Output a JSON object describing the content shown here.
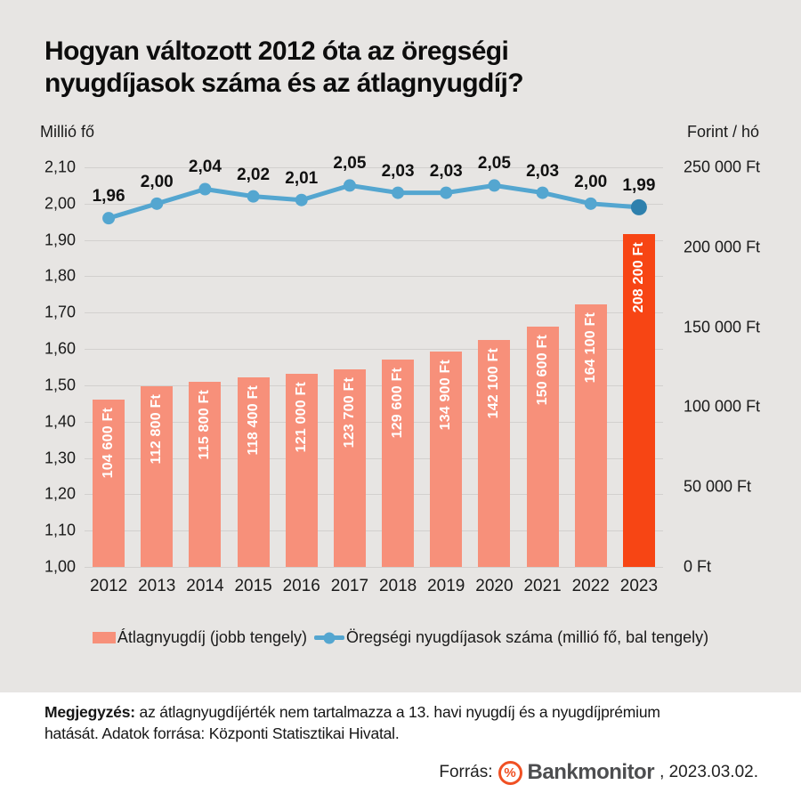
{
  "title": "Hogyan változott 2012 óta az öregségi\nnyugdíjasok száma és az átlagnyugdíj?",
  "chart_data": {
    "type": "combo",
    "title": "Hogyan változott 2012 óta az öregségi nyugdíjasok száma és az átlagnyugdíj?",
    "categories": [
      "2012",
      "2013",
      "2014",
      "2015",
      "2016",
      "2017",
      "2018",
      "2019",
      "2020",
      "2021",
      "2022",
      "2023"
    ],
    "series": [
      {
        "name": "Átlagnyugdíj (jobb tengely)",
        "type": "bar",
        "axis": "right",
        "values": [
          104600,
          112800,
          115800,
          118400,
          121000,
          123700,
          129600,
          134900,
          142100,
          150600,
          164100,
          208200
        ],
        "data_labels": [
          "104 600 Ft",
          "112 800 Ft",
          "115 800 Ft",
          "118 400 Ft",
          "121 000 Ft",
          "123 700 Ft",
          "129 600 Ft",
          "134 900 Ft",
          "142 100 Ft",
          "150 600 Ft",
          "164 100 Ft",
          "208 200 Ft"
        ],
        "color": "#f7907a",
        "highlight_index": 11,
        "highlight_color": "#f74514"
      },
      {
        "name": "Öregségi nyugdíjasok száma (millió fő, bal tengely)",
        "type": "line",
        "axis": "left",
        "values": [
          1.96,
          2.0,
          2.04,
          2.02,
          2.01,
          2.05,
          2.03,
          2.03,
          2.05,
          2.03,
          2.0,
          1.99
        ],
        "data_labels": [
          "1,96",
          "2,00",
          "2,04",
          "2,02",
          "2,01",
          "2,05",
          "2,03",
          "2,03",
          "2,05",
          "2,03",
          "2,00",
          "1,99"
        ],
        "color": "#54a6d0",
        "end_marker_color": "#2e80ad"
      }
    ],
    "left_axis": {
      "label": "Millió fő",
      "min": 1.0,
      "max": 2.1,
      "tick_step": 0.1,
      "ticks": [
        "2,10",
        "2,00",
        "1,90",
        "1,80",
        "1,70",
        "1,60",
        "1,50",
        "1,40",
        "1,30",
        "1,20",
        "1,10",
        "1,00"
      ]
    },
    "right_axis": {
      "label": "Forint / hó",
      "min": 0,
      "max": 250000,
      "tick_step": 50000,
      "ticks": [
        "250 000 Ft",
        "200 000 Ft",
        "150 000 Ft",
        "100 000 Ft",
        "50 000 Ft",
        "0 Ft"
      ]
    },
    "grid": true,
    "legend_position": "bottom"
  },
  "note": {
    "lead": "Megjegyzés:",
    "text": "az átlagnyugdíjérték nem tartalmazza a 13. havi nyugdíj és a nyugdíjprémium\nhatását. Adatok forrása: Központi Statisztikai Hivatal."
  },
  "source": {
    "label": "Forrás:",
    "logo_glyph": "%",
    "brand": "Bankmonitor",
    "suffix": ", 2023.03.02."
  },
  "colors": {
    "background": "#e7e5e3",
    "panel": "#ffffff",
    "grid": "#d2d0ce",
    "bar": "#f7907a",
    "bar_highlight": "#f74514",
    "line": "#54a6d0",
    "line_end": "#2e80ad",
    "text": "#1a1a1a",
    "brand_text": "#4d4e50",
    "accent": "#f05023"
  }
}
